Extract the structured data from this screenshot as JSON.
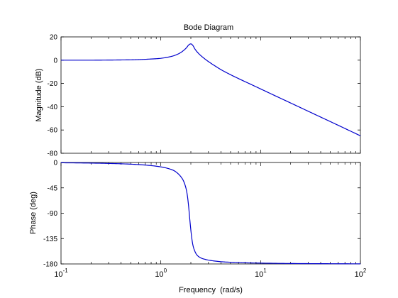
{
  "chart_data": [
    {
      "type": "line",
      "title": "Bode Diagram",
      "ylabel": "Magnitude (dB)",
      "xlabel": "",
      "xscale": "log",
      "xlim": [
        0.1,
        100
      ],
      "ylim": [
        -80,
        20
      ],
      "yticks": [
        20,
        0,
        -20,
        -40,
        -60,
        -80
      ],
      "ytick_labels": [
        "20",
        "0",
        "-20",
        "-40",
        "-60",
        "-80"
      ],
      "grid": false,
      "line_color": "#0000cc",
      "series": [
        {
          "x": [
            0.1,
            0.15,
            0.2,
            0.3,
            0.4,
            0.5,
            0.6,
            0.8,
            1.0,
            1.2,
            1.4,
            1.6,
            1.8,
            1.9,
            2.0,
            2.1,
            2.2,
            2.4,
            2.6,
            3.0,
            3.5,
            4,
            5,
            6,
            8,
            10,
            15,
            20,
            30,
            50,
            70,
            100
          ],
          "y": [
            0.0,
            0.0,
            0.0,
            0.1,
            0.2,
            0.3,
            0.5,
            1.0,
            1.6,
            2.7,
            4.3,
            6.8,
            10.5,
            13.0,
            14.0,
            12.5,
            9.5,
            5.6,
            2.9,
            -1.2,
            -5.0,
            -8.1,
            -12.5,
            -15.8,
            -20.8,
            -24.7,
            -31.8,
            -36.8,
            -43.9,
            -52.8,
            -58.7,
            -65.0
          ]
        }
      ]
    },
    {
      "type": "line",
      "title": "",
      "ylabel": "Phase (deg)",
      "xlabel": "Frequency  (rad/s)",
      "xscale": "log",
      "xlim": [
        0.1,
        100
      ],
      "ylim": [
        -180,
        0
      ],
      "yticks": [
        0,
        -45,
        -90,
        -135,
        -180
      ],
      "ytick_labels": [
        "0",
        "-45",
        "-90",
        "-135",
        "-180"
      ],
      "xticks": [
        0.1,
        1,
        10,
        100
      ],
      "xtick_labels": [
        {
          "base": "10",
          "exp": "-1"
        },
        {
          "base": "10",
          "exp": "0"
        },
        {
          "base": "10",
          "exp": "1"
        },
        {
          "base": "10",
          "exp": "2"
        }
      ],
      "grid": false,
      "line_color": "#0000cc",
      "series": [
        {
          "x": [
            0.1,
            0.2,
            0.3,
            0.5,
            0.7,
            1.0,
            1.2,
            1.4,
            1.6,
            1.7,
            1.8,
            1.85,
            1.9,
            1.95,
            2.0,
            2.05,
            2.1,
            2.2,
            2.3,
            2.5,
            2.8,
            3.2,
            4,
            5,
            7,
            10,
            20,
            50,
            100
          ],
          "y": [
            -0.5,
            -1.1,
            -1.7,
            -3.0,
            -4.6,
            -7.8,
            -11,
            -16,
            -26,
            -34,
            -48,
            -60,
            -78,
            -100,
            -120,
            -136,
            -147,
            -158,
            -164,
            -169,
            -172,
            -174,
            -176,
            -177,
            -178,
            -178.5,
            -179.2,
            -179.6,
            -179.8
          ]
        }
      ]
    }
  ]
}
